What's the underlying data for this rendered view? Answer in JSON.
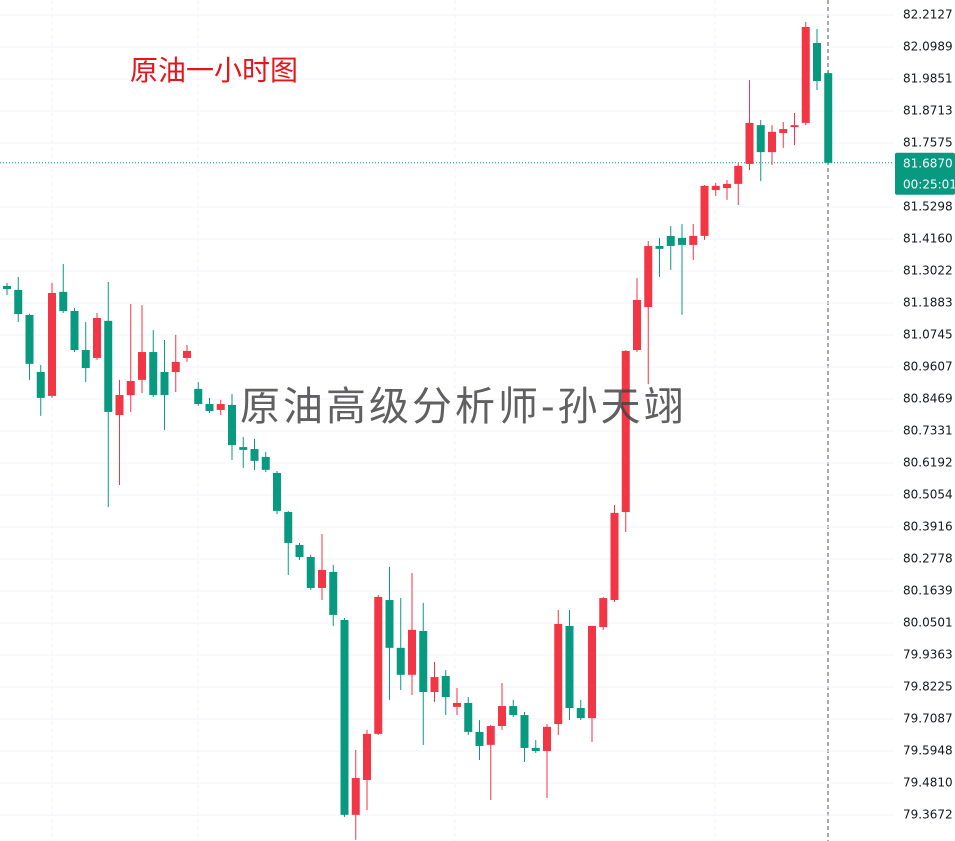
{
  "chart_data": {
    "type": "candlestick",
    "title": "原油一小时图",
    "watermark": "原油高级分析师-孙天翊",
    "up_color": "#f23645",
    "down_color": "#089981",
    "ylim": [
      79.275,
      82.266
    ],
    "yticks": [
      82.2127,
      82.0989,
      81.9851,
      81.8713,
      81.7575,
      81.5298,
      {
        "value": 81.416,
        "label": "81.4160"
      },
      81.3022,
      81.1883,
      81.0745,
      80.9607,
      80.8469,
      80.7331,
      80.6192,
      80.5054,
      80.3916,
      80.2778,
      80.1639,
      80.0501,
      79.9363,
      79.8225,
      79.7087,
      79.5948,
      {
        "value": 79.481,
        "label": "79.4810"
      },
      79.3672
    ],
    "grid": true,
    "last_price": {
      "value": 81.687,
      "label": "81.6870"
    },
    "countdown": "00:25:01",
    "open": [
      81.249,
      81.235,
      81.146,
      80.943,
      80.858,
      81.228,
      81.16,
      81.021,
      80.993,
      81.125,
      80.79,
      80.861,
      80.915,
      81.014,
      80.943,
      80.943,
      80.993,
      80.883,
      80.829,
      80.808,
      80.826,
      80.676,
      80.669,
      80.641,
      80.584,
      80.445,
      80.328,
      80.285,
      80.175,
      80.232,
      80.061,
      79.368,
      79.492,
      79.656,
      80.132,
      79.962,
      79.866,
      80.022,
      79.805,
      79.862,
      79.752,
      79.766,
      79.663,
      79.617,
      79.684,
      79.755,
      79.723,
      79.606,
      79.595,
      79.691,
      80.04,
      79.748,
      79.712,
      80.036,
      80.132,
      80.445,
      81.021,
      81.174,
      81.391,
      81.427,
      81.42,
      81.395,
      81.427,
      81.59,
      81.597,
      81.612,
      81.683,
      81.821,
      81.725,
      81.793,
      81.814,
      81.829,
      82.113,
      82.006
    ],
    "high": [
      81.26,
      81.281,
      81.15,
      80.968,
      81.26,
      81.327,
      81.171,
      81.121,
      81.153,
      81.263,
      80.915,
      81.185,
      81.181,
      81.092,
      81.057,
      81.075,
      81.039,
      80.907,
      80.851,
      80.844,
      80.865,
      80.712,
      80.705,
      80.659,
      80.591,
      80.449,
      80.335,
      80.293,
      80.367,
      80.257,
      80.068,
      79.599,
      79.67,
      80.15,
      80.25,
      80.139,
      80.228,
      80.122,
      79.912,
      79.883,
      79.819,
      79.787,
      79.705,
      79.688,
      79.837,
      79.777,
      79.734,
      79.634,
      79.691,
      80.097,
      80.097,
      79.777,
      80.04,
      80.143,
      80.47,
      81.021,
      81.277,
      81.409,
      81.42,
      81.462,
      81.469,
      81.469,
      81.608,
      81.615,
      81.626,
      81.686,
      81.981,
      81.839,
      81.821,
      81.832,
      81.864,
      82.188,
      82.163,
      82.017
    ],
    "low": [
      81.217,
      81.121,
      80.915,
      80.787,
      80.851,
      81.153,
      81.014,
      80.907,
      80.986,
      80.463,
      80.541,
      80.801,
      80.868,
      80.854,
      80.737,
      80.872,
      80.979,
      80.822,
      80.797,
      80.79,
      80.63,
      80.602,
      80.595,
      80.587,
      80.438,
      80.221,
      80.275,
      80.168,
      80.132,
      80.04,
      79.361,
      79.279,
      79.385,
      79.652,
      79.777,
      79.812,
      79.794,
      79.617,
      79.77,
      79.723,
      79.723,
      79.652,
      79.563,
      79.421,
      79.67,
      79.716,
      79.556,
      79.588,
      79.428,
      79.652,
      79.705,
      79.705,
      79.627,
      80.026,
      80.125,
      80.374,
      81.014,
      80.9,
      81.281,
      81.306,
      81.146,
      81.341,
      81.413,
      81.569,
      81.555,
      81.537,
      81.661,
      81.622,
      81.679,
      81.74,
      81.75,
      81.821,
      81.946,
      81.687
    ],
    "close": [
      81.238,
      81.149,
      80.972,
      80.851,
      81.224,
      81.16,
      81.021,
      80.957,
      81.135,
      80.801,
      80.861,
      80.911,
      81.014,
      80.861,
      80.861,
      80.979,
      81.018,
      80.829,
      80.804,
      80.829,
      80.683,
      80.666,
      80.627,
      80.595,
      80.449,
      80.335,
      80.285,
      80.175,
      80.239,
      80.079,
      79.368,
      79.499,
      79.656,
      80.143,
      79.962,
      79.866,
      80.026,
      79.805,
      79.858,
      79.787,
      79.766,
      79.663,
      79.613,
      79.684,
      79.755,
      79.723,
      79.606,
      79.595,
      79.681,
      80.047,
      79.748,
      79.712,
      80.04,
      80.139,
      80.442,
      81.018,
      81.199,
      81.391,
      81.381,
      81.391,
      81.395,
      81.427,
      81.605,
      81.605,
      81.612,
      81.676,
      81.829,
      81.725,
      81.797,
      81.807,
      81.821,
      82.17,
      81.978,
      81.687
    ]
  }
}
